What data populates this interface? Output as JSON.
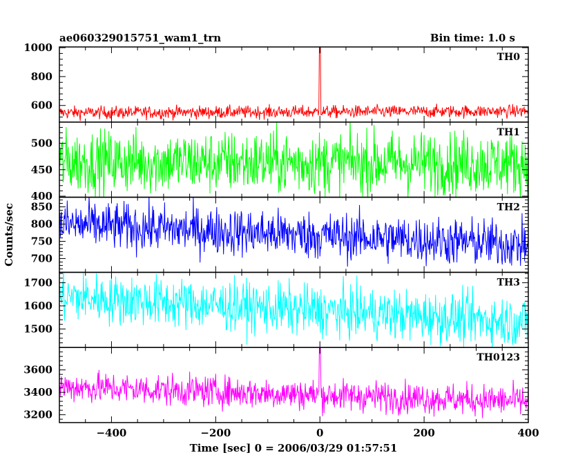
{
  "header": {
    "title": "ae060329015751_wam1_trn",
    "bin_time": "Bin time: 1.0 s"
  },
  "chart_data": {
    "type": "line",
    "title": "ae060329015751_wam1_trn",
    "xlabel": "Time [sec] 0 = 2006/03/29 01:57:51",
    "ylabel": "Counts/sec",
    "xlim": [
      -500,
      400
    ],
    "x_ticks": [
      -400,
      -200,
      0,
      200,
      400
    ],
    "x_tick_labels": [
      "−400",
      "−200",
      "0",
      "200",
      "400"
    ],
    "bin_seconds": 1.0,
    "grid": false,
    "panels": [
      {
        "name": "TH0",
        "color": "#ff0000",
        "ylim": [
          485,
          1005
        ],
        "yticks": [
          600,
          800,
          1000
        ],
        "baseline_start": 550,
        "baseline_end": 560,
        "noise": 22,
        "spike": 1000,
        "spike_x": 0
      },
      {
        "name": "TH1",
        "color": "#00ff00",
        "ylim": [
          398,
          540
        ],
        "yticks": [
          400,
          450,
          500
        ],
        "baseline_start": 465,
        "baseline_end": 462,
        "noise": 30,
        "spike": null
      },
      {
        "name": "TH2",
        "color": "#0000ff",
        "ylim": [
          660,
          878
        ],
        "yticks": [
          700,
          750,
          800,
          850
        ],
        "baseline_start": 800,
        "baseline_end": 740,
        "noise": 35,
        "spike": null
      },
      {
        "name": "TH3",
        "color": "#00ffff",
        "ylim": [
          1420,
          1745
        ],
        "yticks": [
          1500,
          1600,
          1700
        ],
        "baseline_start": 1640,
        "baseline_end": 1530,
        "noise": 55,
        "spike": null
      },
      {
        "name": "TH0123",
        "color": "#ff00ff",
        "ylim": [
          3130,
          3800
        ],
        "yticks": [
          3200,
          3400,
          3600
        ],
        "baseline_start": 3450,
        "baseline_end": 3320,
        "noise": 70,
        "spike": 3800,
        "spike_x": 0
      }
    ]
  }
}
